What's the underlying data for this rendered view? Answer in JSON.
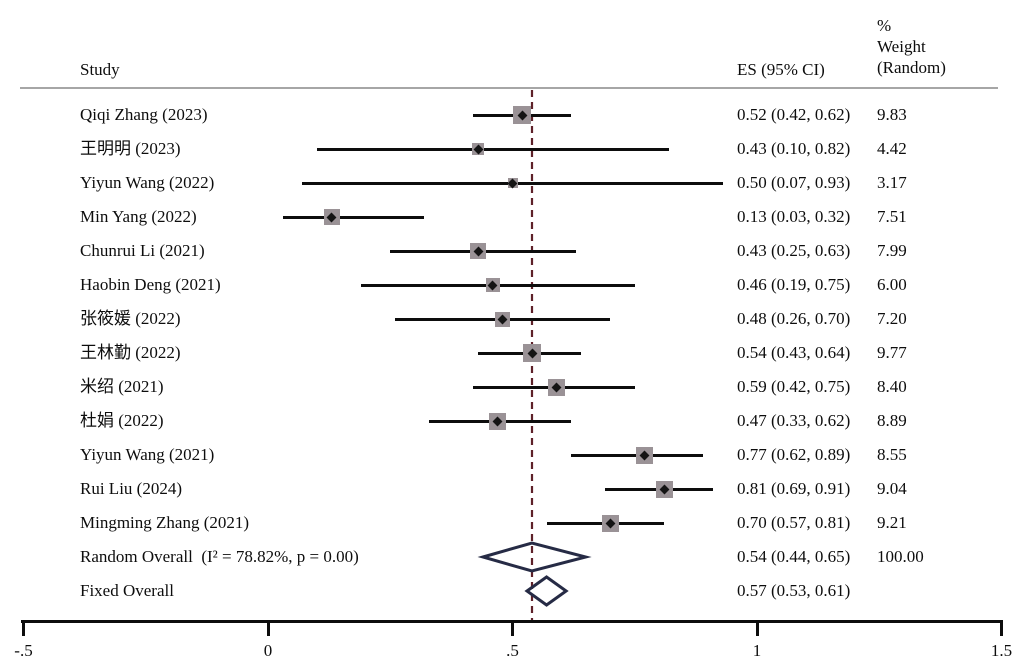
{
  "header": {
    "study_col": "Study",
    "es_col": "ES (95% CI)",
    "weight_col_lines": [
      "%",
      "Weight",
      "(Random)"
    ]
  },
  "colors": {
    "ink": "#0d0d0d",
    "square_fill": "#9a9296",
    "diamond_outline": "#262b45",
    "dashed_overall_line": "#5e2129",
    "header_rule": "#a6a6a6"
  },
  "chart_data": {
    "type": "forest",
    "xlim": [
      -0.5,
      1.5
    ],
    "x_ticks": [
      {
        "label": "-.5",
        "value": -0.5
      },
      {
        "label": "0",
        "value": 0
      },
      {
        "label": ".5",
        "value": 0.5
      },
      {
        "label": "1",
        "value": 1
      },
      {
        "label": "1.5",
        "value": 1.5
      }
    ],
    "overall_dashed_at": 0.54,
    "studies": [
      {
        "name": "Qiqi Zhang (2023)",
        "es": 0.52,
        "lo": 0.42,
        "hi": 0.62,
        "es_ci": "0.52 (0.42, 0.62)",
        "weight": 9.83,
        "weight_label": "9.83"
      },
      {
        "name": "王明明 (2023)",
        "es": 0.43,
        "lo": 0.1,
        "hi": 0.82,
        "es_ci": "0.43 (0.10, 0.82)",
        "weight": 4.42,
        "weight_label": "4.42"
      },
      {
        "name": "Yiyun Wang (2022)",
        "es": 0.5,
        "lo": 0.07,
        "hi": 0.93,
        "es_ci": "0.50 (0.07, 0.93)",
        "weight": 3.17,
        "weight_label": "3.17"
      },
      {
        "name": "Min Yang (2022)",
        "es": 0.13,
        "lo": 0.03,
        "hi": 0.32,
        "es_ci": "0.13 (0.03, 0.32)",
        "weight": 7.51,
        "weight_label": "7.51"
      },
      {
        "name": "Chunrui Li (2021)",
        "es": 0.43,
        "lo": 0.25,
        "hi": 0.63,
        "es_ci": "0.43 (0.25, 0.63)",
        "weight": 7.99,
        "weight_label": "7.99"
      },
      {
        "name": "Haobin Deng (2021)",
        "es": 0.46,
        "lo": 0.19,
        "hi": 0.75,
        "es_ci": "0.46 (0.19, 0.75)",
        "weight": 6.0,
        "weight_label": "6.00"
      },
      {
        "name": "张筱媛 (2022)",
        "es": 0.48,
        "lo": 0.26,
        "hi": 0.7,
        "es_ci": "0.48 (0.26, 0.70)",
        "weight": 7.2,
        "weight_label": "7.20"
      },
      {
        "name": "王林勤 (2022)",
        "es": 0.54,
        "lo": 0.43,
        "hi": 0.64,
        "es_ci": "0.54 (0.43, 0.64)",
        "weight": 9.77,
        "weight_label": "9.77"
      },
      {
        "name": "米绍 (2021)",
        "es": 0.59,
        "lo": 0.42,
        "hi": 0.75,
        "es_ci": "0.59 (0.42, 0.75)",
        "weight": 8.4,
        "weight_label": "8.40"
      },
      {
        "name": "杜娟 (2022)",
        "es": 0.47,
        "lo": 0.33,
        "hi": 0.62,
        "es_ci": "0.47 (0.33, 0.62)",
        "weight": 8.89,
        "weight_label": "8.89"
      },
      {
        "name": "Yiyun Wang (2021)",
        "es": 0.77,
        "lo": 0.62,
        "hi": 0.89,
        "es_ci": "0.77 (0.62, 0.89)",
        "weight": 8.55,
        "weight_label": "8.55"
      },
      {
        "name": "Rui Liu (2024)",
        "es": 0.81,
        "lo": 0.69,
        "hi": 0.91,
        "es_ci": "0.81 (0.69, 0.91)",
        "weight": 9.04,
        "weight_label": "9.04"
      },
      {
        "name": "Mingming Zhang (2021)",
        "es": 0.7,
        "lo": 0.57,
        "hi": 0.81,
        "es_ci": "0.70 (0.57, 0.81)",
        "weight": 9.21,
        "weight_label": "9.21"
      }
    ],
    "overalls": [
      {
        "name": "Random Overall  (I² = 78.82%, p = 0.00)",
        "es": 0.54,
        "lo": 0.44,
        "hi": 0.65,
        "es_ci": "0.54 (0.44, 0.65)",
        "weight_label": "100.00"
      },
      {
        "name": "Fixed Overall",
        "es": 0.57,
        "lo": 0.53,
        "hi": 0.61,
        "es_ci": "0.57 (0.53, 0.61)",
        "weight_label": ""
      }
    ]
  }
}
